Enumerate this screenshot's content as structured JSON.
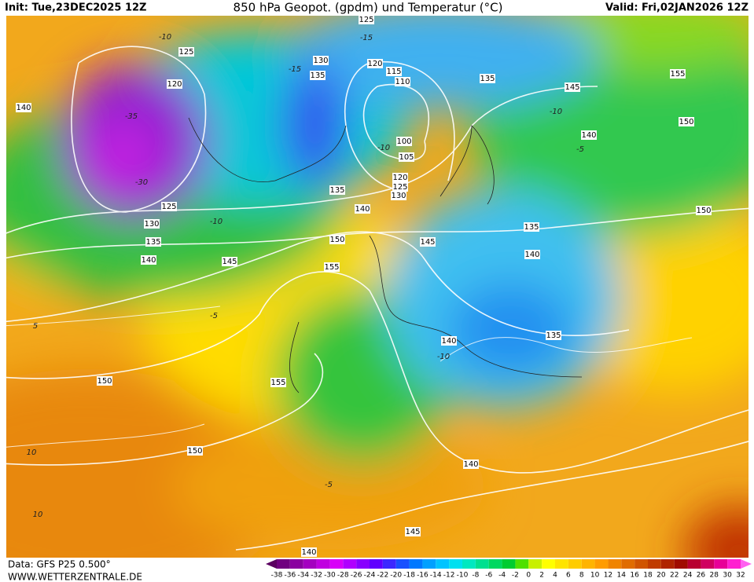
{
  "header": {
    "init": "Init: Tue,23DEC2025 12Z",
    "title": "850 hPa Geopot. (gpdm) und Temperatur (°C)",
    "valid": "Valid: Fri,02JAN2026 12Z"
  },
  "footer": {
    "data": "Data: GFS P25 0.500°",
    "site": "WWW.WETTERZENTRALE.DE"
  },
  "colorbar": {
    "ticks": [
      -38,
      -36,
      -34,
      -32,
      -30,
      -28,
      -26,
      -24,
      -22,
      -20,
      -18,
      -16,
      -14,
      -12,
      -10,
      -8,
      -6,
      -4,
      -2,
      0,
      2,
      4,
      6,
      8,
      10,
      12,
      14,
      16,
      18,
      20,
      22,
      24,
      26,
      28,
      30,
      32
    ],
    "colors": [
      "#5a0060",
      "#700080",
      "#8a00a0",
      "#a400c0",
      "#c000e0",
      "#d800f8",
      "#b000ff",
      "#8800ff",
      "#6000ff",
      "#3c28ff",
      "#1850ff",
      "#0078ff",
      "#00a0ff",
      "#00c4ff",
      "#00e0f0",
      "#00e8c0",
      "#00e090",
      "#00d860",
      "#00cc30",
      "#50e000",
      "#c8f000",
      "#ffff00",
      "#ffe400",
      "#ffcc00",
      "#ffb400",
      "#ff9c00",
      "#f08400",
      "#e06c00",
      "#d05400",
      "#c03c00",
      "#b02400",
      "#a00c00",
      "#b80030",
      "#d00060",
      "#e80098",
      "#ff20d0",
      "#ff60f0"
    ]
  },
  "geopotential_labels": [
    125,
    125,
    120,
    140,
    135,
    130,
    120,
    115,
    110,
    135,
    145,
    155,
    150,
    140,
    100,
    105,
    120,
    125,
    130,
    135,
    140,
    125,
    130,
    135,
    140,
    145,
    150,
    155,
    145,
    135,
    140,
    150,
    140,
    135,
    150,
    155,
    150,
    140,
    145,
    140
  ],
  "temperature_labels": [
    -15,
    -15,
    -35,
    -30,
    -10,
    -10,
    -10,
    -5,
    5,
    -5,
    -10,
    10,
    -10,
    10,
    -5
  ]
}
